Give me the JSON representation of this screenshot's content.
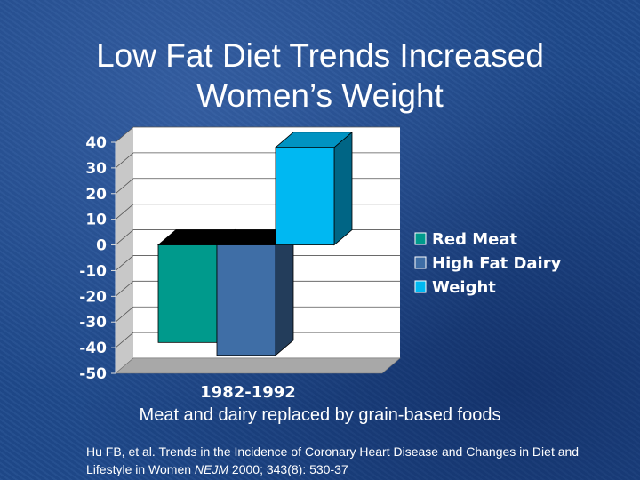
{
  "slide": {
    "title_line1": "Low Fat Diet Trends Increased",
    "title_line2": "Women’s Weight",
    "subtitle": "Meat and dairy replaced by grain-based foods",
    "citation_part1": "Hu FB, et al. Trends in the Incidence of Coronary Heart Disease and Changes in Diet and Lifestyle in Women ",
    "citation_journal": "NEJM",
    "citation_part2": " 2000; 343(8): 530-37"
  },
  "chart_data": {
    "type": "bar",
    "title": "",
    "categories": [
      "1982-1992"
    ],
    "series": [
      {
        "name": "Red Meat",
        "values": [
          -38
        ],
        "color": "#009a8c"
      },
      {
        "name": "High Fat Dairy",
        "values": [
          -43
        ],
        "color": "#3f6ea6"
      },
      {
        "name": "Weight",
        "values": [
          38
        ],
        "color": "#00b8f2"
      }
    ],
    "ylim": [
      -50,
      40
    ],
    "yticks": [
      "40",
      "30",
      "20",
      "10",
      "0",
      "-10",
      "-20",
      "-30",
      "-40",
      "-50"
    ],
    "grid": true,
    "legend": "right",
    "xlabel": "",
    "ylabel": ""
  }
}
